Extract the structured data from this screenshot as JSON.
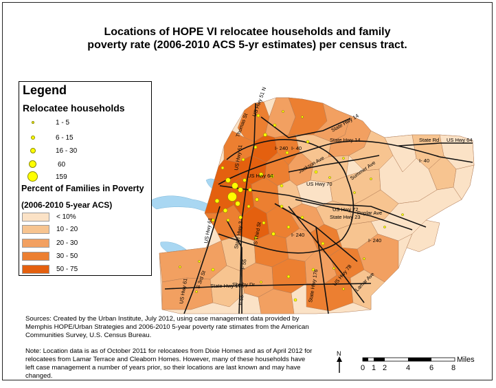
{
  "map": {
    "title_line1": "Locations of HOPE VI relocatee households and family",
    "title_line2": "poverty rate (2006-2010 ACS 5-yr estimates) per census tract.",
    "road_labels": [
      "US Hwy 51 N",
      "Thomas St",
      "State Hwy 14",
      "State Rd",
      "US Hwy 64",
      "I- 240",
      "I- 40",
      "State Hwy 14",
      "Jackson Ave",
      "Summer Ave",
      "US Hwy 70",
      "US Hwy 64",
      "US Hwy 72",
      "Poplar Ave",
      "I- 240",
      "I- 240",
      "US Hwy 61",
      "State Hwy 23",
      "US Hwy 78",
      "Lamar Ave",
      "S 3rd St",
      "State Hwy 175",
      "Shelby Dr",
      "I- 55",
      "State Hwy 176",
      "US Hwy 61",
      "I- 40",
      "US Hwy 51",
      "I- 55",
      "State Hwy 3",
      "S Third St"
    ]
  },
  "legend": {
    "title": "Legend",
    "households_title": "Relocatee households",
    "households": [
      {
        "label": "1 - 5"
      },
      {
        "label": "6 - 15"
      },
      {
        "label": "16 - 30"
      },
      {
        "label": "60"
      },
      {
        "label": "159"
      }
    ],
    "poverty_title": "Percent of Families in Poverty",
    "poverty_subtitle": "(2006-2010 5-year ACS)",
    "poverty_classes": [
      {
        "label": "< 10%",
        "color": "#fbe2c6"
      },
      {
        "label": "10 - 20",
        "color": "#f7c490"
      },
      {
        "label": "20 - 30",
        "color": "#f2a061"
      },
      {
        "label": "30 - 50",
        "color": "#ec7f31"
      },
      {
        "label": "50 - 75",
        "color": "#e4600f"
      }
    ],
    "dot_color": "#ffff00"
  },
  "sources": {
    "p1": "Sources: Created by the Urban Institute, July 2012, using case management data provided by Memphis HOPE/Urban Strategies and 2006-2010 5-year poverty rate stimates from the American Communities Survey, U.S. Census Bureau.",
    "p2": "Note: Location data is as of October 2011 for relocatees from Dixie Homes and as of April 2012 for relocatees from Lamar Terrace and Cleaborn Homes. However, many of these households have left case management a number of years prior, so their locations are last known and may have changed."
  },
  "scale_bar": {
    "north": "N",
    "unit": "Miles",
    "ticks": [
      "0",
      "1",
      "2",
      "4",
      "6",
      "8"
    ]
  }
}
